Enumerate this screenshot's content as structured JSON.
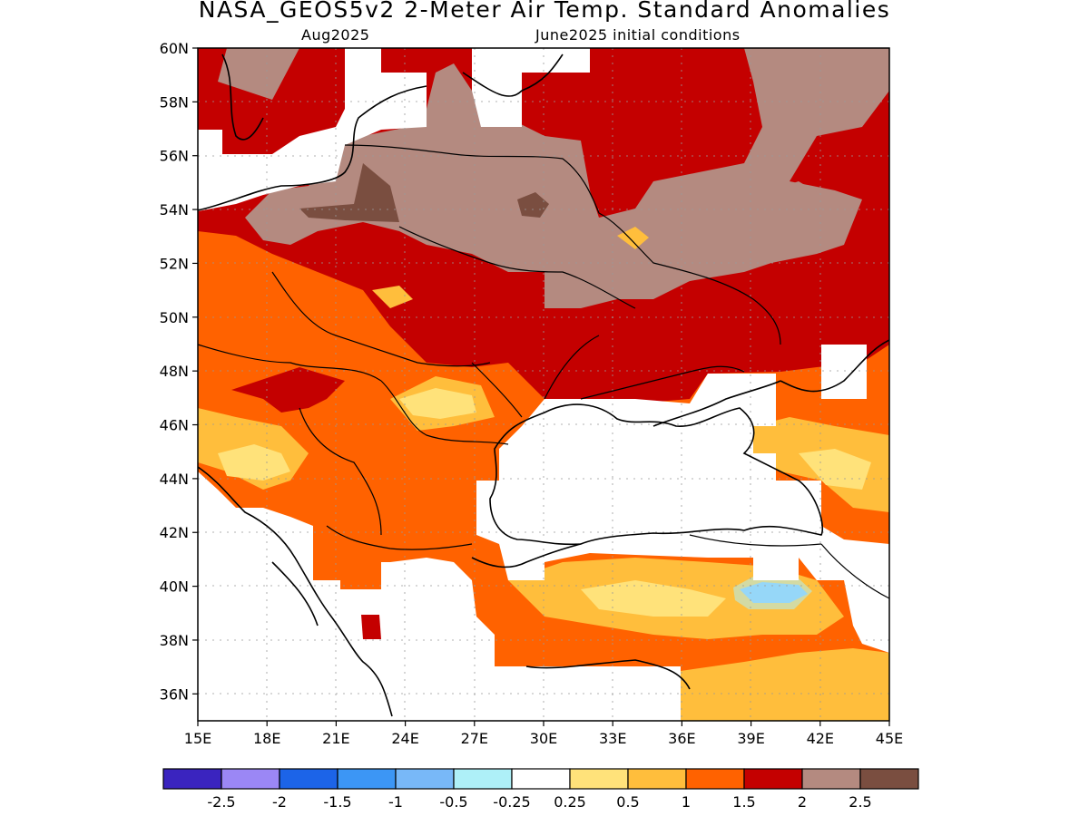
{
  "title": "NASA_GEOS5v2 2-Meter Air Temp. Standard Anomalies",
  "subtitle_left": "Aug2025",
  "subtitle_right": "June2025 initial conditions",
  "map": {
    "lon_range": [
      15,
      45
    ],
    "lat_range": [
      35,
      60
    ],
    "lat_labels": [
      "60N",
      "58N",
      "56N",
      "54N",
      "52N",
      "50N",
      "48N",
      "46N",
      "44N",
      "42N",
      "40N",
      "38N",
      "36N"
    ],
    "lon_labels": [
      "15E",
      "18E",
      "21E",
      "24E",
      "27E",
      "30E",
      "33E",
      "36E",
      "39E",
      "42E",
      "45E"
    ]
  },
  "colorbar": {
    "colors": [
      "#3a24bf",
      "#9b87f5",
      "#1c64e8",
      "#3c96f5",
      "#78b8f8",
      "#aef0f8",
      "#ffffff",
      "#ffe27a",
      "#ffbe3c",
      "#ff6200",
      "#c40000",
      "#b48a80",
      "#7a4e40"
    ],
    "labels": [
      "-2.5",
      "-2",
      "-1.5",
      "-1",
      "-0.5",
      "-0.25",
      "0.25",
      "0.5",
      "1",
      "1.5",
      "2",
      "2.5"
    ]
  },
  "chart_data": {
    "type": "heatmap",
    "title": "NASA_GEOS5v2 2-Meter Air Temp. Standard Anomalies",
    "xlim": [
      15,
      45
    ],
    "ylim": [
      35,
      60
    ],
    "levels": [
      -2.5,
      -2,
      -1.5,
      -1,
      -0.5,
      -0.25,
      0.25,
      0.5,
      1,
      1.5,
      2,
      2.5
    ]
  }
}
